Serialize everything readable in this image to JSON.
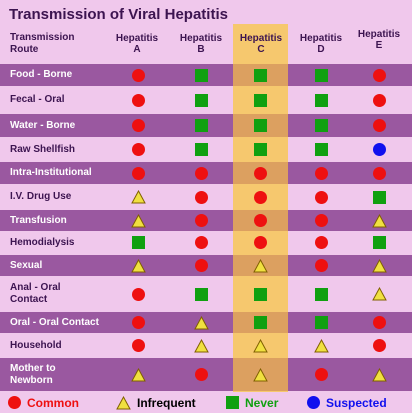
{
  "title": "Transmission of Viral Hepatitis",
  "header": {
    "route": "Transmission\nRoute",
    "columns": [
      "Hepatitis\nA",
      "Hepatitis\nB",
      "Hepatitis\nC",
      "Hepatitis\nD",
      "Hepatitis\nE"
    ]
  },
  "rows": [
    {
      "label": "Food - Borne",
      "values": [
        "common",
        "never",
        "never",
        "never",
        "common"
      ]
    },
    {
      "label": "Fecal - Oral",
      "values": [
        "common",
        "never",
        "never",
        "never",
        "common"
      ]
    },
    {
      "label": "Water - Borne",
      "values": [
        "common",
        "never",
        "never",
        "never",
        "common"
      ]
    },
    {
      "label": "Raw Shellfish",
      "values": [
        "common",
        "never",
        "never",
        "never",
        "suspected"
      ]
    },
    {
      "label": "Intra-Institutional",
      "values": [
        "common",
        "common",
        "common",
        "common",
        "common"
      ]
    },
    {
      "label": "I.V. Drug Use",
      "values": [
        "infrequent",
        "common",
        "common",
        "common",
        "never"
      ]
    },
    {
      "label": "Transfusion",
      "values": [
        "infrequent",
        "common",
        "common",
        "common",
        "infrequent"
      ]
    },
    {
      "label": "Hemodialysis",
      "values": [
        "never",
        "common",
        "common",
        "common",
        "never"
      ]
    },
    {
      "label": "Sexual",
      "values": [
        "infrequent",
        "common",
        "infrequent",
        "common",
        "infrequent"
      ]
    },
    {
      "label": "Anal - Oral\nContact",
      "values": [
        "common",
        "never",
        "never",
        "never",
        "infrequent"
      ]
    },
    {
      "label": "Oral - Oral Contact",
      "values": [
        "common",
        "infrequent",
        "never",
        "never",
        "common"
      ]
    },
    {
      "label": "Household",
      "values": [
        "common",
        "infrequent",
        "infrequent",
        "infrequent",
        "common"
      ]
    },
    {
      "label": "Mother to\nNewborn",
      "values": [
        "infrequent",
        "common",
        "infrequent",
        "common",
        "infrequent"
      ]
    }
  ],
  "legend": {
    "common": "Common",
    "infrequent": "Infrequent",
    "never": "Never",
    "suspected": "Suspected"
  },
  "colors": {
    "common": "#ee1010",
    "infrequent": "#f0e040",
    "never": "#10a010",
    "suspected": "#1010ee",
    "highlight": "#f6c86e",
    "row_dark": "#9a58a0",
    "row_light": "#f0c8ec"
  }
}
